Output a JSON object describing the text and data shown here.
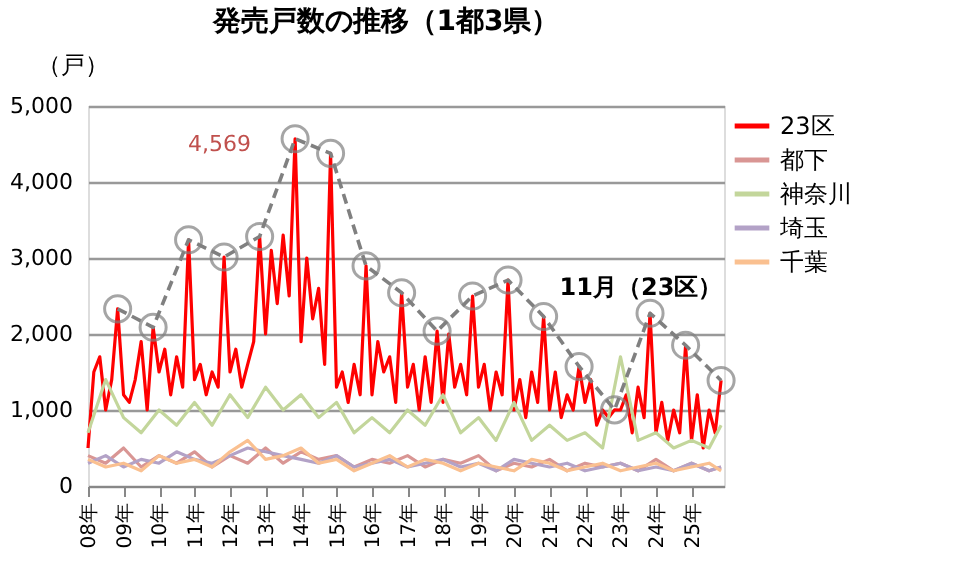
{
  "chart_data": {
    "type": "line",
    "title": "発売戸数の推移（1都3県）",
    "ylabel": "（戸）",
    "xlim": [
      "2008-01",
      "2025-12"
    ],
    "xticks": [
      {
        "value": "2008",
        "label": "08年"
      },
      {
        "value": "2009",
        "label": "09年"
      },
      {
        "value": "2010",
        "label": "10年"
      },
      {
        "value": "2011",
        "label": "11年"
      },
      {
        "value": "2012",
        "label": "12年"
      },
      {
        "value": "2013",
        "label": "13年"
      },
      {
        "value": "2014",
        "label": "14年"
      },
      {
        "value": "2015",
        "label": "15年"
      },
      {
        "value": "2016",
        "label": "16年"
      },
      {
        "value": "2017",
        "label": "17年"
      },
      {
        "value": "2018",
        "label": "18年"
      },
      {
        "value": "2019",
        "label": "19年"
      },
      {
        "value": "2020",
        "label": "20年"
      },
      {
        "value": "2021",
        "label": "21年"
      },
      {
        "value": "2022",
        "label": "22年"
      },
      {
        "value": "2023",
        "label": "23年"
      },
      {
        "value": "2024",
        "label": "24年"
      },
      {
        "value": "2025",
        "label": "25年"
      }
    ],
    "ylim": [
      0,
      5000
    ],
    "yticks": [
      0,
      {
        "value": 1000,
        "label": "1,000"
      },
      {
        "value": 2000,
        "label": "2,000"
      },
      {
        "value": 3000,
        "label": "3,000"
      },
      {
        "value": 4000,
        "label": "4,000"
      },
      {
        "value": 5000,
        "label": "5,000"
      }
    ],
    "grid": "y",
    "legend": "right",
    "marker": "none",
    "line_style": "solid",
    "annotations": [
      {
        "text": "4,569",
        "x": "2013-11",
        "y": 4569
      }
    ],
    "series": [
      {
        "name": "23区",
        "color": "#ff0000",
        "x": [
          "2008-01",
          "2008-03",
          "2008-05",
          "2008-07",
          "2008-09",
          "2008-11",
          "2009-01",
          "2009-03",
          "2009-05",
          "2009-07",
          "2009-09",
          "2009-11",
          "2010-01",
          "2010-03",
          "2010-05",
          "2010-07",
          "2010-09",
          "2010-11",
          "2011-01",
          "2011-03",
          "2011-05",
          "2011-07",
          "2011-09",
          "2011-11",
          "2012-01",
          "2012-03",
          "2012-05",
          "2012-07",
          "2012-09",
          "2012-11",
          "2013-01",
          "2013-03",
          "2013-05",
          "2013-07",
          "2013-09",
          "2013-11",
          "2014-01",
          "2014-03",
          "2014-05",
          "2014-07",
          "2014-09",
          "2014-11",
          "2015-01",
          "2015-03",
          "2015-05",
          "2015-07",
          "2015-09",
          "2015-11",
          "2016-01",
          "2016-03",
          "2016-05",
          "2016-07",
          "2016-09",
          "2016-11",
          "2017-01",
          "2017-03",
          "2017-05",
          "2017-07",
          "2017-09",
          "2017-11",
          "2018-01",
          "2018-03",
          "2018-05",
          "2018-07",
          "2018-09",
          "2018-11",
          "2019-01",
          "2019-03",
          "2019-05",
          "2019-07",
          "2019-09",
          "2019-11",
          "2020-01",
          "2020-03",
          "2020-05",
          "2020-07",
          "2020-09",
          "2020-11",
          "2021-01",
          "2021-03",
          "2021-05",
          "2021-07",
          "2021-09",
          "2021-11",
          "2022-01",
          "2022-03",
          "2022-05",
          "2022-07",
          "2022-09",
          "2022-11",
          "2023-01",
          "2023-03",
          "2023-05",
          "2023-07",
          "2023-09",
          "2023-11",
          "2024-01",
          "2024-03",
          "2024-05",
          "2024-07",
          "2024-09",
          "2024-11",
          "2025-01",
          "2025-03",
          "2025-05",
          "2025-07",
          "2025-09",
          "2025-11"
        ],
        "values": [
          500,
          1500,
          1700,
          1000,
          1400,
          2331,
          1200,
          1100,
          1400,
          1900,
          1000,
          2088,
          1500,
          1800,
          1200,
          1700,
          1300,
          3240,
          1400,
          1600,
          1200,
          1500,
          1300,
          3013,
          1500,
          1800,
          1300,
          1600,
          1900,
          3283,
          2000,
          3100,
          2400,
          3300,
          2500,
          4569,
          1900,
          3000,
          2200,
          2600,
          1600,
          4377,
          1300,
          1500,
          1100,
          1600,
          1200,
          2896,
          1200,
          1900,
          1500,
          1700,
          1100,
          2543,
          1300,
          1600,
          1000,
          1700,
          1100,
          2038,
          1100,
          2000,
          1300,
          1600,
          1200,
          2500,
          1300,
          1600,
          1000,
          1500,
          1200,
          2710,
          1000,
          1400,
          900,
          1500,
          1100,
          2230,
          1000,
          1500,
          900,
          1200,
          1000,
          1573,
          1100,
          1400,
          800,
          1000,
          900,
          1002,
          1000,
          1200,
          700,
          1300,
          900,
          2273,
          700,
          1100,
          600,
          1000,
          700,
          1852,
          600,
          1200,
          500,
          1000,
          700,
          1389
        ]
      },
      {
        "name": "都下",
        "color": "#d99694",
        "x": [
          "2008-01",
          "2008-07",
          "2009-01",
          "2009-07",
          "2010-01",
          "2010-07",
          "2011-01",
          "2011-07",
          "2012-01",
          "2012-07",
          "2013-01",
          "2013-07",
          "2014-01",
          "2014-07",
          "2015-01",
          "2015-07",
          "2016-01",
          "2016-07",
          "2017-01",
          "2017-07",
          "2018-01",
          "2018-07",
          "2019-01",
          "2019-07",
          "2020-01",
          "2020-07",
          "2021-01",
          "2021-07",
          "2022-01",
          "2022-07",
          "2023-01",
          "2023-07",
          "2024-01",
          "2024-07",
          "2025-01",
          "2025-07",
          "2025-11"
        ],
        "values": [
          400,
          300,
          500,
          250,
          400,
          300,
          450,
          250,
          400,
          300,
          500,
          300,
          450,
          350,
          400,
          250,
          350,
          300,
          400,
          250,
          350,
          300,
          400,
          200,
          300,
          250,
          350,
          200,
          300,
          250,
          300,
          200,
          350,
          200,
          300,
          200,
          250
        ]
      },
      {
        "name": "神奈川",
        "color": "#c3d69b",
        "x": [
          "2008-01",
          "2008-07",
          "2009-01",
          "2009-07",
          "2010-01",
          "2010-07",
          "2011-01",
          "2011-07",
          "2012-01",
          "2012-07",
          "2013-01",
          "2013-07",
          "2014-01",
          "2014-07",
          "2015-01",
          "2015-07",
          "2016-01",
          "2016-07",
          "2017-01",
          "2017-07",
          "2018-01",
          "2018-07",
          "2019-01",
          "2019-07",
          "2020-01",
          "2020-07",
          "2021-01",
          "2021-07",
          "2022-01",
          "2022-07",
          "2023-01",
          "2023-07",
          "2024-01",
          "2024-07",
          "2025-01",
          "2025-07",
          "2025-11"
        ],
        "values": [
          700,
          1400,
          900,
          700,
          1000,
          800,
          1100,
          800,
          1200,
          900,
          1300,
          1000,
          1200,
          900,
          1100,
          700,
          900,
          700,
          1000,
          800,
          1200,
          700,
          900,
          600,
          1100,
          600,
          800,
          600,
          700,
          500,
          1700,
          600,
          700,
          500,
          600,
          500,
          800
        ]
      },
      {
        "name": "埼玉",
        "color": "#b3a2c7",
        "x": [
          "2008-01",
          "2008-07",
          "2009-01",
          "2009-07",
          "2010-01",
          "2010-07",
          "2011-01",
          "2011-07",
          "2012-01",
          "2012-07",
          "2013-01",
          "2013-07",
          "2014-01",
          "2014-07",
          "2015-01",
          "2015-07",
          "2016-01",
          "2016-07",
          "2017-01",
          "2017-07",
          "2018-01",
          "2018-07",
          "2019-01",
          "2019-07",
          "2020-01",
          "2020-07",
          "2021-01",
          "2021-07",
          "2022-01",
          "2022-07",
          "2023-01",
          "2023-07",
          "2024-01",
          "2024-07",
          "2025-01",
          "2025-07",
          "2025-11"
        ],
        "values": [
          300,
          400,
          250,
          350,
          300,
          450,
          350,
          300,
          400,
          500,
          450,
          400,
          350,
          300,
          400,
          250,
          300,
          350,
          250,
          300,
          350,
          250,
          300,
          200,
          350,
          300,
          250,
          300,
          200,
          250,
          300,
          200,
          250,
          200,
          300,
          200,
          250
        ]
      },
      {
        "name": "千葉",
        "color": "#fac090",
        "x": [
          "2008-01",
          "2008-07",
          "2009-01",
          "2009-07",
          "2010-01",
          "2010-07",
          "2011-01",
          "2011-07",
          "2012-01",
          "2012-07",
          "2013-01",
          "2013-07",
          "2014-01",
          "2014-07",
          "2015-01",
          "2015-07",
          "2016-01",
          "2016-07",
          "2017-01",
          "2017-07",
          "2018-01",
          "2018-07",
          "2019-01",
          "2019-07",
          "2020-01",
          "2020-07",
          "2021-01",
          "2021-07",
          "2022-01",
          "2022-07",
          "2023-01",
          "2023-07",
          "2024-01",
          "2024-07",
          "2025-01",
          "2025-07",
          "2025-11"
        ],
        "values": [
          350,
          250,
          300,
          200,
          400,
          300,
          350,
          250,
          450,
          600,
          350,
          400,
          500,
          300,
          350,
          200,
          300,
          400,
          250,
          350,
          300,
          200,
          300,
          250,
          200,
          350,
          300,
          200,
          250,
          300,
          200,
          250,
          300,
          200,
          250,
          300,
          200
        ]
      },
      {
        "name": "11月（23区）",
        "color": "#808080",
        "type": "line",
        "marker": "circle",
        "line_style": "dashed",
        "x": [
          "2008-11",
          "2009-11",
          "2010-11",
          "2011-11",
          "2012-11",
          "2013-11",
          "2014-11",
          "2015-11",
          "2016-11",
          "2017-11",
          "2018-11",
          "2019-11",
          "2020-11",
          "2021-11",
          "2022-11",
          "2023-11",
          "2024-11",
          "2025-11"
        ],
        "values": [
          2331,
          2088,
          3240,
          3013,
          3283,
          4569,
          4377,
          2896,
          2543,
          2038,
          2500,
          2710,
          2230,
          1573,
          1002,
          2273,
          1852,
          1389
        ]
      }
    ]
  }
}
